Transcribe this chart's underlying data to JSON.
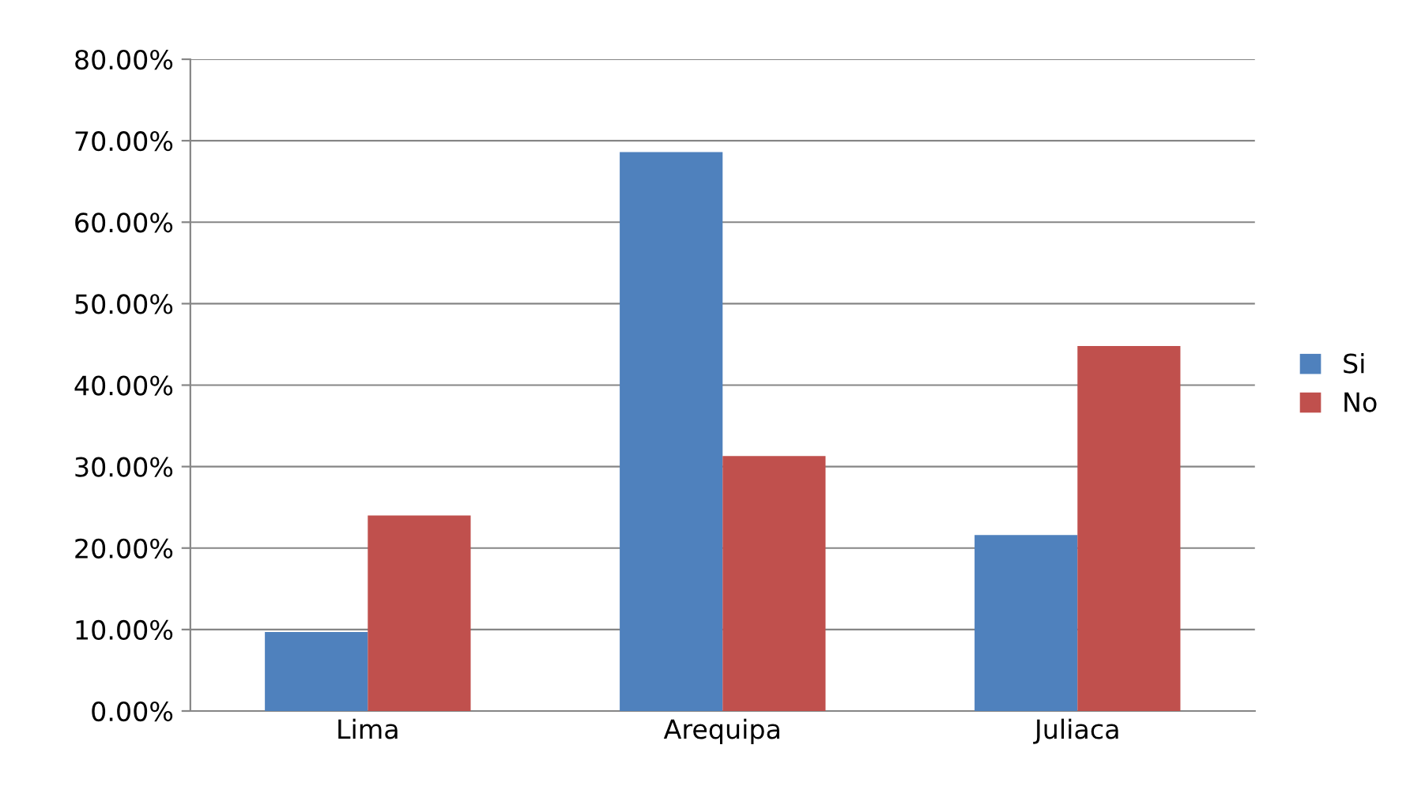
{
  "chart_data": {
    "type": "bar",
    "categories": [
      "Lima",
      "Arequipa",
      "Juliaca"
    ],
    "series": [
      {
        "name": "Si",
        "color": "#4f81bd",
        "values": [
          9.7,
          68.6,
          21.6
        ]
      },
      {
        "name": "No",
        "color": "#c0504d",
        "values": [
          24.0,
          31.3,
          44.8
        ]
      }
    ],
    "ylim": [
      0,
      80
    ],
    "yticks": [
      {
        "value": 0,
        "label": "0.00%"
      },
      {
        "value": 10,
        "label": "10.00%"
      },
      {
        "value": 20,
        "label": "20.00%"
      },
      {
        "value": 30,
        "label": "30.00%"
      },
      {
        "value": 40,
        "label": "40.00%"
      },
      {
        "value": 50,
        "label": "50.00%"
      },
      {
        "value": 60,
        "label": "60.00%"
      },
      {
        "value": 70,
        "label": "70.00%"
      },
      {
        "value": 80,
        "label": "80.00%"
      }
    ],
    "grid": "y",
    "legend": "right"
  }
}
